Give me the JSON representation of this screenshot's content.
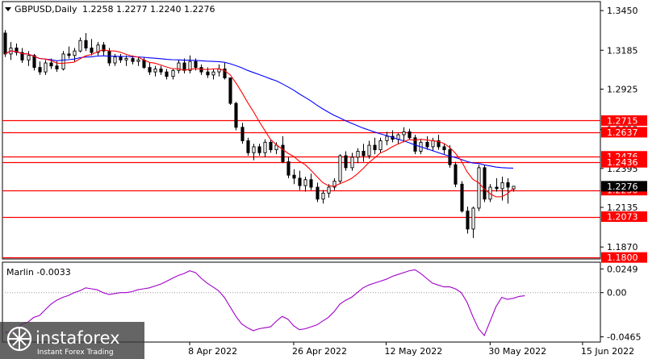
{
  "header": {
    "symbol": "GBPUSD,Daily",
    "ohlc": "1.2258 1.2277 1.2240 1.2276"
  },
  "indicator": {
    "name": "Marlin -0.0033"
  },
  "watermark": {
    "brand": "instaforex",
    "tagline": "Instant Forex Trading"
  },
  "colors": {
    "price_line": "#000000",
    "sma_fast": "#ff0000",
    "sma_slow": "#0000ff",
    "oscillator": "#a000c8",
    "level_line": "#ff0000",
    "label_bg": "#ff0000",
    "label_text": "#ffffff",
    "current_price_bg": "#000000"
  },
  "chart_data": [
    {
      "type": "candlestick",
      "price_axis": {
        "ticks": [
          "1.3450",
          "1.3185",
          "1.2925",
          "1.2655",
          "1.2395",
          "1.2135",
          "1.1870"
        ],
        "tick_values": [
          1.345,
          1.3185,
          1.2925,
          1.2655,
          1.2395,
          1.2135,
          1.187
        ],
        "range": [
          1.179,
          1.351
        ]
      },
      "date_axis": {
        "labels": [
          "8 Apr 2022",
          "26 Apr 2022",
          "12 May 2022",
          "30 May 2022",
          "15 Jun 2022"
        ],
        "label_candle_index": [
          32,
          50,
          66,
          84,
          100
        ]
      },
      "levels": [
        {
          "value": 1.2715,
          "label": "1.2715"
        },
        {
          "value": 1.2637,
          "label": "1.2637"
        },
        {
          "value": 1.2476,
          "label": "1.2476"
        },
        {
          "value": 1.2436,
          "label": "1.2436"
        },
        {
          "value": 1.225,
          "label": "1.2250"
        },
        {
          "value": 1.2073,
          "label": "1.2073"
        },
        {
          "value": 1.18,
          "label": "1.1800"
        }
      ],
      "current_price": {
        "value": 1.2276,
        "label": "1.2276"
      },
      "candles": [
        [
          1.33,
          1.332,
          1.314,
          1.316
        ],
        [
          1.316,
          1.324,
          1.312,
          1.32
        ],
        [
          1.32,
          1.323,
          1.315,
          1.317
        ],
        [
          1.317,
          1.32,
          1.31,
          1.312
        ],
        [
          1.312,
          1.318,
          1.308,
          1.315
        ],
        [
          1.315,
          1.316,
          1.305,
          1.307
        ],
        [
          1.307,
          1.311,
          1.302,
          1.304
        ],
        [
          1.304,
          1.312,
          1.302,
          1.31
        ],
        [
          1.31,
          1.313,
          1.306,
          1.308
        ],
        [
          1.308,
          1.311,
          1.304,
          1.306
        ],
        [
          1.306,
          1.318,
          1.305,
          1.316
        ],
        [
          1.316,
          1.321,
          1.313,
          1.315
        ],
        [
          1.315,
          1.32,
          1.311,
          1.318
        ],
        [
          1.318,
          1.327,
          1.317,
          1.325
        ],
        [
          1.325,
          1.33,
          1.318,
          1.32
        ],
        [
          1.32,
          1.326,
          1.315,
          1.317
        ],
        [
          1.317,
          1.324,
          1.315,
          1.322
        ],
        [
          1.322,
          1.324,
          1.315,
          1.318
        ],
        [
          1.318,
          1.32,
          1.308,
          1.31
        ],
        [
          1.31,
          1.316,
          1.308,
          1.314
        ],
        [
          1.314,
          1.316,
          1.31,
          1.312
        ],
        [
          1.312,
          1.315,
          1.308,
          1.313
        ],
        [
          1.313,
          1.315,
          1.309,
          1.311
        ],
        [
          1.311,
          1.314,
          1.308,
          1.312
        ],
        [
          1.312,
          1.314,
          1.306,
          1.307
        ],
        [
          1.307,
          1.31,
          1.302,
          1.304
        ],
        [
          1.304,
          1.308,
          1.301,
          1.306
        ],
        [
          1.306,
          1.308,
          1.302,
          1.304
        ],
        [
          1.304,
          1.306,
          1.299,
          1.301
        ],
        [
          1.301,
          1.306,
          1.299,
          1.305
        ],
        [
          1.305,
          1.312,
          1.303,
          1.31
        ],
        [
          1.31,
          1.313,
          1.303,
          1.305
        ],
        [
          1.305,
          1.315,
          1.303,
          1.311
        ],
        [
          1.311,
          1.313,
          1.305,
          1.307
        ],
        [
          1.307,
          1.309,
          1.302,
          1.304
        ],
        [
          1.304,
          1.307,
          1.3,
          1.302
        ],
        [
          1.302,
          1.306,
          1.299,
          1.304
        ],
        [
          1.304,
          1.309,
          1.301,
          1.306
        ],
        [
          1.306,
          1.31,
          1.299,
          1.3
        ],
        [
          1.3,
          1.299,
          1.282,
          1.283
        ],
        [
          1.283,
          1.284,
          1.265,
          1.267
        ],
        [
          1.267,
          1.27,
          1.256,
          1.258
        ],
        [
          1.258,
          1.26,
          1.248,
          1.25
        ],
        [
          1.25,
          1.256,
          1.245,
          1.254
        ],
        [
          1.254,
          1.256,
          1.248,
          1.25
        ],
        [
          1.25,
          1.259,
          1.247,
          1.257
        ],
        [
          1.257,
          1.259,
          1.25,
          1.252
        ],
        [
          1.252,
          1.257,
          1.249,
          1.255
        ],
        [
          1.255,
          1.261,
          1.243,
          1.244
        ],
        [
          1.244,
          1.247,
          1.233,
          1.235
        ],
        [
          1.235,
          1.239,
          1.229,
          1.233
        ],
        [
          1.233,
          1.238,
          1.225,
          1.228
        ],
        [
          1.228,
          1.234,
          1.224,
          1.232
        ],
        [
          1.232,
          1.236,
          1.225,
          1.227
        ],
        [
          1.227,
          1.23,
          1.217,
          1.219
        ],
        [
          1.219,
          1.225,
          1.216,
          1.223
        ],
        [
          1.223,
          1.229,
          1.22,
          1.227
        ],
        [
          1.227,
          1.233,
          1.225,
          1.231
        ],
        [
          1.231,
          1.249,
          1.229,
          1.248
        ],
        [
          1.248,
          1.251,
          1.238,
          1.24
        ],
        [
          1.24,
          1.25,
          1.238,
          1.247
        ],
        [
          1.247,
          1.253,
          1.243,
          1.251
        ],
        [
          1.251,
          1.256,
          1.244,
          1.248
        ],
        [
          1.248,
          1.258,
          1.246,
          1.255
        ],
        [
          1.255,
          1.26,
          1.249,
          1.252
        ],
        [
          1.252,
          1.26,
          1.25,
          1.258
        ],
        [
          1.258,
          1.264,
          1.255,
          1.261
        ],
        [
          1.261,
          1.265,
          1.257,
          1.259
        ],
        [
          1.259,
          1.263,
          1.256,
          1.262
        ],
        [
          1.262,
          1.267,
          1.257,
          1.264
        ],
        [
          1.264,
          1.266,
          1.259,
          1.26
        ],
        [
          1.26,
          1.262,
          1.249,
          1.251
        ],
        [
          1.251,
          1.259,
          1.249,
          1.257
        ],
        [
          1.257,
          1.261,
          1.252,
          1.254
        ],
        [
          1.254,
          1.26,
          1.251,
          1.258
        ],
        [
          1.258,
          1.262,
          1.252,
          1.254
        ],
        [
          1.254,
          1.256,
          1.249,
          1.252
        ],
        [
          1.252,
          1.255,
          1.24,
          1.242
        ],
        [
          1.242,
          1.244,
          1.227,
          1.229
        ],
        [
          1.229,
          1.231,
          1.21,
          1.211
        ],
        [
          1.211,
          1.214,
          1.196,
          1.199
        ],
        [
          1.199,
          1.214,
          1.193,
          1.213
        ],
        [
          1.213,
          1.242,
          1.211,
          1.24
        ],
        [
          1.24,
          1.242,
          1.217,
          1.219
        ],
        [
          1.219,
          1.229,
          1.217,
          1.227
        ],
        [
          1.227,
          1.233,
          1.224,
          1.226
        ],
        [
          1.226,
          1.234,
          1.218,
          1.23
        ],
        [
          1.23,
          1.233,
          1.216,
          1.227
        ],
        [
          1.2258,
          1.2277,
          1.224,
          1.2276
        ]
      ],
      "candle_x_start": 6,
      "candle_x_end": 636
    },
    {
      "type": "line",
      "title": "Marlin -0.0033",
      "axis_ticks": [
        "0.0249",
        "0.00",
        "-0.0465"
      ],
      "axis_values": [
        0.0249,
        0.0,
        -0.0465
      ],
      "range": [
        -0.052,
        0.032
      ],
      "zero_line": 0.0,
      "values": [
        -0.042,
        -0.041,
        -0.038,
        -0.033,
        -0.031,
        -0.026,
        -0.024,
        -0.018,
        -0.012,
        -0.008,
        -0.005,
        -0.003,
        0.0,
        0.002,
        0.005,
        0.004,
        0.003,
        0.0,
        -0.002,
        -0.001,
        0.0,
        0.0,
        0.001,
        0.003,
        0.004,
        0.005,
        0.007,
        0.009,
        0.012,
        0.015,
        0.018,
        0.02,
        0.023,
        0.021,
        0.015,
        0.01,
        0.006,
        0.002,
        -0.005,
        -0.015,
        -0.025,
        -0.033,
        -0.037,
        -0.04,
        -0.038,
        -0.037,
        -0.036,
        -0.03,
        -0.025,
        -0.028,
        -0.035,
        -0.039,
        -0.038,
        -0.036,
        -0.034,
        -0.03,
        -0.026,
        -0.02,
        -0.012,
        -0.008,
        -0.005,
        0.0,
        0.005,
        0.008,
        0.01,
        0.012,
        0.014,
        0.017,
        0.019,
        0.021,
        0.023,
        0.024,
        0.02,
        0.015,
        0.01,
        0.008,
        0.006,
        0.006,
        0.004,
        0.0,
        -0.01,
        -0.025,
        -0.038,
        -0.045,
        -0.03,
        -0.015,
        -0.005,
        -0.007,
        -0.006,
        -0.004,
        -0.0033
      ]
    }
  ]
}
